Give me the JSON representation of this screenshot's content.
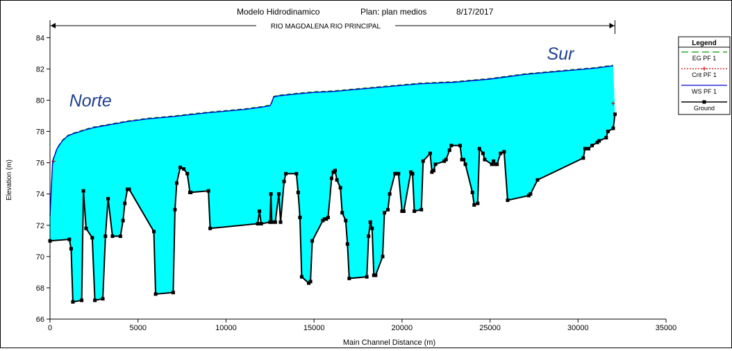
{
  "chart_data": {
    "type": "area",
    "title": "Modelo Hidrodinamico",
    "plan": "Plan: plan medios",
    "date": "8/17/2017",
    "reach_label": "RIO MAGDALENA RIO PRINCIPAL",
    "xlabel": "Main Channel Distance (m)",
    "ylabel": "Elevation (m)",
    "xlim": [
      0,
      35000
    ],
    "ylim": [
      66,
      84.5
    ],
    "xticks": [
      0,
      5000,
      10000,
      15000,
      20000,
      25000,
      30000,
      35000
    ],
    "yticks": [
      66,
      68,
      70,
      72,
      74,
      76,
      78,
      80,
      82,
      84
    ],
    "annotations": [
      {
        "text": "Norte",
        "x": 2300,
        "y": 79.6
      },
      {
        "text": "Sur",
        "x": 29000,
        "y": 82.6
      }
    ],
    "legend": {
      "title": "Legend",
      "position": "right",
      "entries": [
        {
          "label": "EG  PF 1",
          "color": "#009900",
          "style": "dashed"
        },
        {
          "label": "Crit  PF 1",
          "color": "#cc0000",
          "style": "dashed-plus"
        },
        {
          "label": "WS  PF 1",
          "color": "#0000cc",
          "style": "solid"
        },
        {
          "label": "Ground",
          "color": "#000000",
          "style": "solid-square"
        }
      ]
    },
    "series": [
      {
        "name": "WS  PF 1",
        "x": [
          0,
          150,
          400,
          700,
          1000,
          1300,
          1600,
          2000,
          2500,
          3000,
          3500,
          4000,
          4500,
          5000,
          5500,
          6000,
          7000,
          8000,
          9000,
          10000,
          11000,
          12000,
          12500,
          12600,
          12700,
          13000,
          14000,
          15000,
          16000,
          17000,
          18000,
          19000,
          20000,
          21000,
          22000,
          23000,
          24000,
          25000,
          26000,
          27000,
          28000,
          29000,
          30000,
          31000,
          32000
        ],
        "y": [
          72.6,
          76.1,
          76.9,
          77.4,
          77.7,
          77.85,
          77.95,
          78.1,
          78.25,
          78.35,
          78.45,
          78.55,
          78.65,
          78.72,
          78.8,
          78.85,
          78.95,
          79.08,
          79.2,
          79.3,
          79.4,
          79.55,
          79.65,
          79.85,
          80.2,
          80.28,
          80.4,
          80.5,
          80.55,
          80.65,
          80.75,
          80.85,
          80.95,
          81.05,
          81.1,
          81.15,
          81.25,
          81.35,
          81.5,
          81.65,
          81.75,
          81.85,
          81.95,
          82.05,
          82.2
        ]
      },
      {
        "name": "Ground",
        "x": [
          0,
          1100,
          1200,
          1300,
          1800,
          1900,
          2050,
          2400,
          2550,
          3000,
          3150,
          3300,
          3550,
          4000,
          4150,
          4250,
          4400,
          4500,
          5900,
          6000,
          7000,
          7100,
          7200,
          7400,
          7600,
          7800,
          7950,
          8000,
          9000,
          9100,
          11800,
          11900,
          12000,
          12500,
          12550,
          12600,
          12800,
          13000,
          13100,
          13300,
          13400,
          14000,
          14100,
          14200,
          14300,
          14700,
          14800,
          14900,
          15500,
          15600,
          15700,
          15800,
          16000,
          16100,
          16200,
          16300,
          16500,
          16600,
          16800,
          16900,
          17000,
          18000,
          18100,
          18200,
          18300,
          18400,
          18500,
          18900,
          19000,
          19200,
          19300,
          19600,
          19700,
          19800,
          20000,
          20100,
          20500,
          20600,
          20700,
          21100,
          21200,
          21600,
          21700,
          21800,
          21900,
          22400,
          22500,
          22700,
          22800,
          23300,
          23400,
          23500,
          23600,
          24000,
          24100,
          24300,
          24400,
          24600,
          24700,
          25100,
          25200,
          25300,
          25400,
          25600,
          25800,
          26000,
          27200,
          27300,
          27700,
          30300,
          30400,
          30600,
          30800,
          31100,
          31200,
          31600,
          31700,
          32000,
          32100
        ],
        "y": [
          71.0,
          71.1,
          70.5,
          67.1,
          67.2,
          74.2,
          71.8,
          71.2,
          67.2,
          67.3,
          71.3,
          73.7,
          71.3,
          71.3,
          72.3,
          73.4,
          74.3,
          74.3,
          71.6,
          67.6,
          67.7,
          73.0,
          74.7,
          75.7,
          75.6,
          75.3,
          74.1,
          74.1,
          74.2,
          71.8,
          72.1,
          72.9,
          72.1,
          72.2,
          74.0,
          72.2,
          72.2,
          74.0,
          72.2,
          74.8,
          75.3,
          75.3,
          74.1,
          72.5,
          68.7,
          68.3,
          68.4,
          71.0,
          72.3,
          72.4,
          72.4,
          72.5,
          75.0,
          75.4,
          75.5,
          74.9,
          74.4,
          72.8,
          72.3,
          70.8,
          68.6,
          68.7,
          71.3,
          72.2,
          71.8,
          68.8,
          68.8,
          70.0,
          72.8,
          73.0,
          74.0,
          75.3,
          75.3,
          75.3,
          72.9,
          72.9,
          75.4,
          75.3,
          72.9,
          73.0,
          76.1,
          76.6,
          75.4,
          75.5,
          75.9,
          76.1,
          76.2,
          76.8,
          77.1,
          77.1,
          76.2,
          76.2,
          75.9,
          74.1,
          73.3,
          73.4,
          76.9,
          76.6,
          76.2,
          75.9,
          76.1,
          75.9,
          75.9,
          76.6,
          76.7,
          73.6,
          73.9,
          74.0,
          74.9,
          76.3,
          76.9,
          76.9,
          77.1,
          77.3,
          77.4,
          77.6,
          78.0,
          78.2,
          79.1
        ]
      }
    ]
  }
}
